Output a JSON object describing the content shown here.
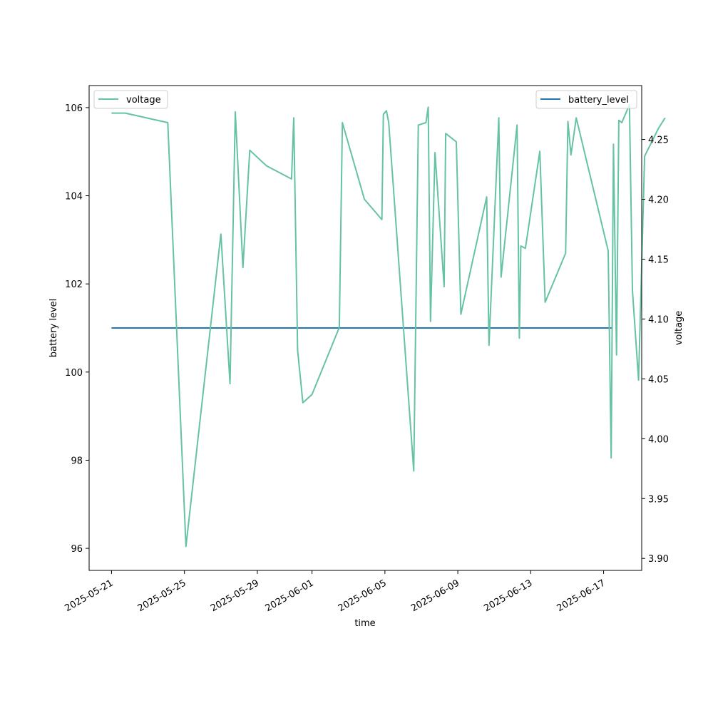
{
  "chart_data": {
    "type": "line",
    "xlabel": "time",
    "ylabel_left": "battery level",
    "ylabel_right": "voltage",
    "x_ticks": [
      "2025-05-21",
      "2025-05-25",
      "2025-05-29",
      "2025-06-01",
      "2025-06-05",
      "2025-06-09",
      "2025-06-13",
      "2025-06-17"
    ],
    "yleft_ticks": [
      96,
      98,
      100,
      102,
      104,
      106
    ],
    "yleft_lim": [
      95.5,
      106.5
    ],
    "yright_ticks": [
      3.9,
      3.95,
      4.0,
      4.05,
      4.1,
      4.15,
      4.2,
      4.25
    ],
    "yright_lim": [
      3.89,
      4.295
    ],
    "legend_left": {
      "label": "voltage",
      "placement": "upper left"
    },
    "legend_right": {
      "label": "battery_level",
      "placement": "upper right"
    },
    "series": [
      {
        "name": "battery_level",
        "axis": "left",
        "color": "#1f77b4",
        "points": [
          [
            "2025-05-21T00:00",
            101
          ],
          [
            "2025-06-17T12:00",
            101
          ]
        ]
      },
      {
        "name": "voltage",
        "axis": "right",
        "color": "#66c2a5",
        "points": [
          [
            "2025-05-21T00:00",
            4.272
          ],
          [
            "2025-05-21T18:00",
            4.272
          ],
          [
            "2025-05-24T02:00",
            4.264
          ],
          [
            "2025-05-25T02:00",
            3.91
          ],
          [
            "2025-05-27T00:00",
            4.171
          ],
          [
            "2025-05-27T12:00",
            4.046
          ],
          [
            "2025-05-27T19:00",
            4.273
          ],
          [
            "2025-05-28T05:00",
            4.143
          ],
          [
            "2025-05-28T14:00",
            4.241
          ],
          [
            "2025-05-29T12:00",
            4.228
          ],
          [
            "2025-05-30T21:00",
            4.217
          ],
          [
            "2025-05-31T00:00",
            4.268
          ],
          [
            "2025-05-31T05:00",
            4.074
          ],
          [
            "2025-05-31T12:00",
            4.03
          ],
          [
            "2025-06-01T00:00",
            4.037
          ],
          [
            "2025-06-02T12:00",
            4.093
          ],
          [
            "2025-06-02T16:00",
            4.264
          ],
          [
            "2025-06-03T21:00",
            4.2
          ],
          [
            "2025-06-04T20:00",
            4.183
          ],
          [
            "2025-06-04T22:00",
            4.271
          ],
          [
            "2025-06-05T02:00",
            4.274
          ],
          [
            "2025-06-05T05:00",
            4.264
          ],
          [
            "2025-06-06T14:00",
            3.973
          ],
          [
            "2025-06-06T20:00",
            4.262
          ],
          [
            "2025-06-07T06:00",
            4.264
          ],
          [
            "2025-06-07T09:00",
            4.277
          ],
          [
            "2025-06-07T12:00",
            4.098
          ],
          [
            "2025-06-07T18:00",
            4.239
          ],
          [
            "2025-06-08T06:00",
            4.127
          ],
          [
            "2025-06-08T08:00",
            4.255
          ],
          [
            "2025-06-08T22:00",
            4.248
          ],
          [
            "2025-06-09T04:00",
            4.104
          ],
          [
            "2025-06-10T14:00",
            4.202
          ],
          [
            "2025-06-10T17:00",
            4.078
          ],
          [
            "2025-06-11T06:00",
            4.268
          ],
          [
            "2025-06-11T09:00",
            4.135
          ],
          [
            "2025-06-12T06:00",
            4.262
          ],
          [
            "2025-06-12T09:00",
            4.084
          ],
          [
            "2025-06-12T11:00",
            4.161
          ],
          [
            "2025-06-12T17:00",
            4.159
          ],
          [
            "2025-06-13T12:00",
            4.24
          ],
          [
            "2025-06-13T19:00",
            4.114
          ],
          [
            "2025-06-14T22:00",
            4.155
          ],
          [
            "2025-06-15T01:00",
            4.265
          ],
          [
            "2025-06-15T05:00",
            4.237
          ],
          [
            "2025-06-15T12:00",
            4.268
          ],
          [
            "2025-06-17T06:00",
            4.157
          ],
          [
            "2025-06-17T10:00",
            3.984
          ],
          [
            "2025-06-17T13:00",
            4.246
          ],
          [
            "2025-06-17T17:00",
            4.07
          ],
          [
            "2025-06-17T20:00",
            4.266
          ],
          [
            "2025-06-18T00:00",
            4.264
          ],
          [
            "2025-06-18T10:00",
            4.279
          ],
          [
            "2025-06-18T14:00",
            4.124
          ],
          [
            "2025-06-18T22:00",
            4.049
          ],
          [
            "2025-06-19T06:00",
            4.236
          ],
          [
            "2025-06-20T00:00",
            4.259
          ],
          [
            "2025-06-20T09:00",
            4.268
          ]
        ]
      }
    ]
  }
}
